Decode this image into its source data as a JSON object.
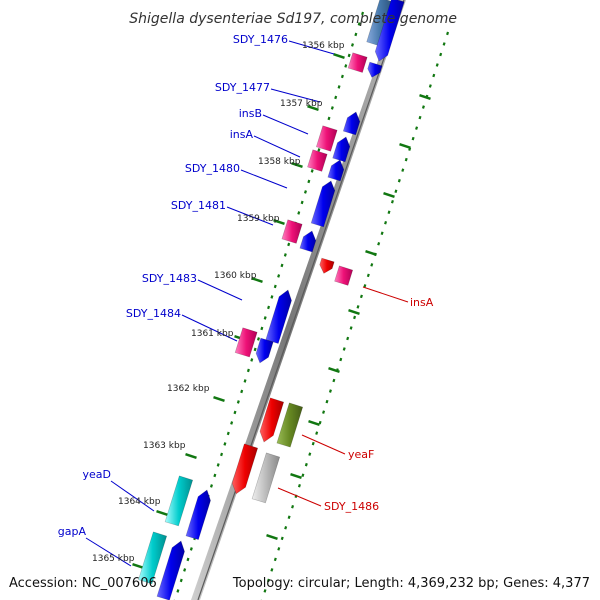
{
  "title": "Shigella dysenteriae Sd197, complete genome",
  "accession": "Accession: NC_007606",
  "topology": "Topology: circular; Length: 4,369,232 bp; Genes: 4,377",
  "colors": {
    "forward_gene": "#0000ee",
    "forward_label": "#0000cc",
    "reverse_label": "#cc0000",
    "insertion": "#ee1177",
    "red_gene": "#ee0000",
    "olive_gene": "#668822",
    "gray_gene": "#bbbbbb",
    "cyan_gene": "#00cccc",
    "steel_gene": "#4477aa",
    "tick": "#117711",
    "backbone": "#888888"
  },
  "scale_labels": [
    "1356 kbp",
    "1357 kbp",
    "1358 kbp",
    "1359 kbp",
    "1360 kbp",
    "1361 kbp",
    "1362 kbp",
    "1363 kbp",
    "1364 kbp",
    "1365 kbp"
  ],
  "forward_genes": [
    "SDY_1476",
    "SDY_1477",
    "insB",
    "insA",
    "SDY_1480",
    "SDY_1481",
    "SDY_1483",
    "SDY_1484",
    "yeaD",
    "gapA"
  ],
  "reverse_genes": [
    "insA",
    "yeaF",
    "SDY_1486"
  ]
}
